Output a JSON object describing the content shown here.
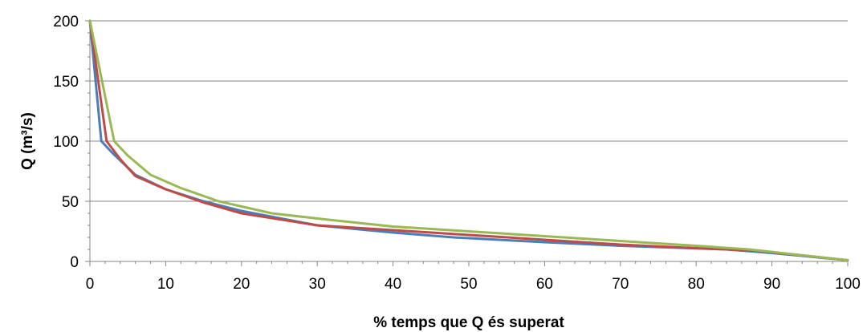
{
  "chart_data": {
    "type": "line",
    "title": "",
    "xlabel": "% temps que Q és superat",
    "ylabel": "Q (m³/s)",
    "xlim": [
      0,
      100
    ],
    "ylim": [
      0,
      200
    ],
    "x_ticks": [
      0,
      10,
      20,
      30,
      40,
      50,
      60,
      70,
      80,
      90,
      100
    ],
    "y_ticks": [
      0,
      50,
      100,
      150,
      200
    ],
    "grid": "horizontal",
    "legend": "none",
    "series": [
      {
        "color": "#4a7ebb",
        "points": [
          [
            0,
            200
          ],
          [
            1.5,
            100
          ],
          [
            3,
            90
          ],
          [
            6,
            72
          ],
          [
            10,
            60
          ],
          [
            15,
            50
          ],
          [
            20,
            42
          ],
          [
            30,
            30
          ],
          [
            40,
            24
          ],
          [
            48,
            20
          ],
          [
            60,
            16
          ],
          [
            70,
            13
          ],
          [
            84,
            10
          ],
          [
            90,
            7
          ],
          [
            100,
            1
          ]
        ]
      },
      {
        "color": "#be4b48",
        "points": [
          [
            0,
            200
          ],
          [
            2.2,
            100
          ],
          [
            4,
            85
          ],
          [
            6,
            71
          ],
          [
            10,
            60
          ],
          [
            15,
            49
          ],
          [
            20,
            40
          ],
          [
            30,
            30
          ],
          [
            40,
            26
          ],
          [
            50,
            22
          ],
          [
            60,
            18
          ],
          [
            70,
            14
          ],
          [
            80,
            11
          ],
          [
            88,
            9
          ],
          [
            100,
            1
          ]
        ]
      },
      {
        "color": "#98b954",
        "points": [
          [
            0,
            200
          ],
          [
            3.2,
            100
          ],
          [
            5,
            88
          ],
          [
            8,
            72
          ],
          [
            12,
            61
          ],
          [
            17,
            50
          ],
          [
            24,
            40
          ],
          [
            31,
            35
          ],
          [
            40,
            29
          ],
          [
            50,
            25
          ],
          [
            60,
            21
          ],
          [
            70,
            17
          ],
          [
            80,
            13
          ],
          [
            87,
            10
          ],
          [
            100,
            1
          ]
        ]
      }
    ]
  }
}
